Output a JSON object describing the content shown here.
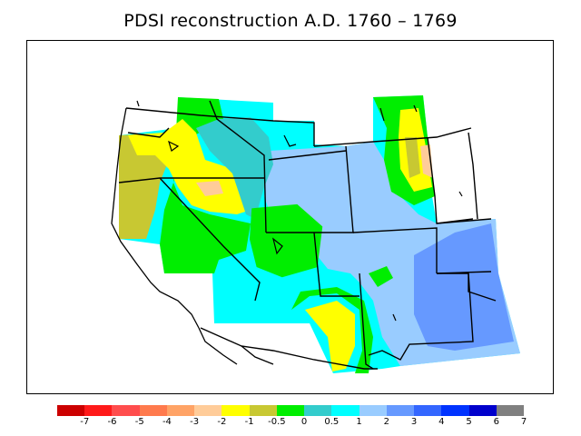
{
  "title": "PDSI reconstruction A.D. 1760 – 1769",
  "colorbar": {
    "colors": [
      "#cc0000",
      "#ff1a1a",
      "#ff4d4d",
      "#ff7a4d",
      "#ffa366",
      "#ffcc99",
      "#ffff00",
      "#c8c832",
      "#00ee00",
      "#33cccc",
      "#00ffff",
      "#99ccff",
      "#6699ff",
      "#3366ff",
      "#0033ff",
      "#0000cc",
      "#808080"
    ],
    "labels": [
      "-7",
      "-6",
      "-5",
      "-4",
      "-3",
      "-2",
      "-1",
      "-0.5",
      "0",
      "0.5",
      "1",
      "2",
      "3",
      "4",
      "5",
      "6",
      "7"
    ]
  },
  "map": {
    "region": "western United States",
    "field_colors": {
      "yellow": "#ffff00",
      "olive": "#c8c832",
      "green": "#00ee00",
      "teal": "#33cccc",
      "cyan": "#00ffff",
      "lightblue": "#99ccff",
      "blue": "#6699ff",
      "peach": "#ffcc99"
    }
  }
}
